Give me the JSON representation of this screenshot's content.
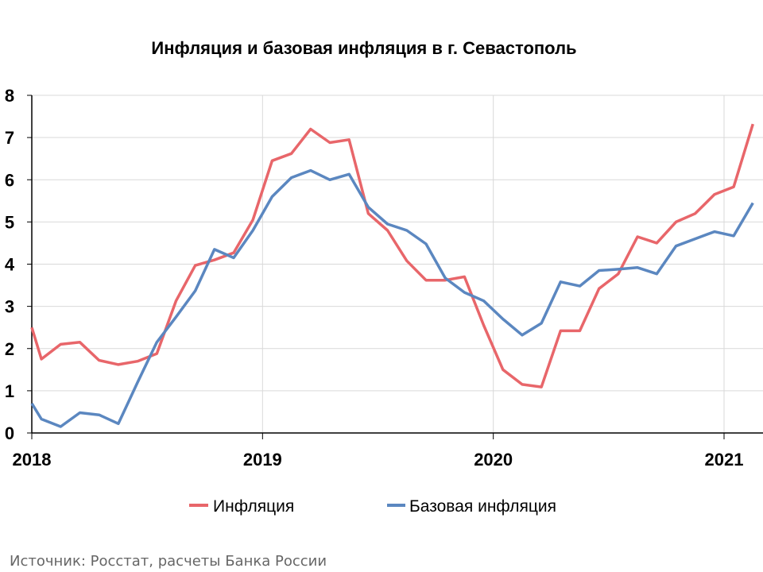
{
  "chart_data": {
    "type": "line",
    "title": "Инфляция и базовая инфляция в г. Севастополь",
    "xlabel": "",
    "ylabel": "",
    "ylim": [
      0,
      8
    ],
    "yticks": [
      "0",
      "1",
      "2",
      "3",
      "4",
      "5",
      "6",
      "7",
      "8"
    ],
    "x_unit": "months since Jan 2018",
    "xlim": [
      0,
      38
    ],
    "xticks": [
      {
        "label": "2018",
        "x": 0
      },
      {
        "label": "2019",
        "x": 12
      },
      {
        "label": "2020",
        "x": 24
      },
      {
        "label": "2021",
        "x": 36
      }
    ],
    "grid": true,
    "legend_position": "bottom",
    "x": [
      0,
      0.5,
      1.5,
      2.5,
      3.5,
      4.5,
      5.5,
      6.5,
      7.5,
      8.5,
      9.5,
      10.5,
      11.5,
      12.5,
      13.5,
      14.5,
      15.5,
      16.5,
      17.5,
      18.5,
      19.5,
      20.5,
      21.5,
      22.5,
      23.5,
      24.5,
      25.5,
      26.5,
      27.5,
      28.5,
      29.5,
      30.5,
      31.5,
      32.5,
      33.5,
      34.5,
      35.5,
      36.5,
      37.5
    ],
    "series": [
      {
        "name": "Инфляция",
        "color": "#E8666A",
        "values": [
          2.5,
          1.75,
          2.1,
          2.15,
          1.72,
          1.62,
          1.7,
          1.88,
          3.13,
          3.97,
          4.1,
          4.27,
          5.05,
          6.45,
          6.62,
          7.2,
          6.88,
          6.95,
          5.2,
          4.8,
          4.08,
          3.62,
          3.62,
          3.7,
          2.55,
          1.5,
          1.15,
          1.09,
          2.42,
          2.42,
          3.42,
          3.77,
          4.65,
          4.5,
          5.0,
          5.2,
          5.65,
          5.83,
          7.32
        ]
      },
      {
        "name": "Базовая инфляция",
        "color": "#5B87C0",
        "values": [
          0.7,
          0.33,
          0.15,
          0.48,
          0.43,
          0.22,
          1.2,
          2.15,
          2.75,
          3.37,
          4.35,
          4.15,
          4.8,
          5.6,
          6.05,
          6.22,
          6.0,
          6.13,
          5.35,
          4.95,
          4.8,
          4.48,
          3.67,
          3.33,
          3.13,
          2.7,
          2.32,
          2.6,
          3.58,
          3.48,
          3.85,
          3.88,
          3.92,
          3.77,
          4.43,
          4.6,
          4.77,
          4.67,
          5.45
        ]
      }
    ]
  },
  "source": "Источник: Росстат, расчеты Банка России"
}
